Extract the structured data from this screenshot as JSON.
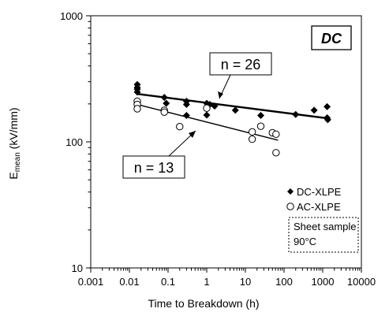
{
  "chart_data": {
    "type": "scatter",
    "title": "",
    "corner_label": "DC",
    "xlabel": "Time to Breakdown (h)",
    "ylabel_main": "E",
    "ylabel_sub": "mean",
    "ylabel_unit": " (kV/mm)",
    "x_scale": "log",
    "y_scale": "log",
    "xlim": [
      0.001,
      10000
    ],
    "ylim": [
      10,
      1000
    ],
    "x_ticks": [
      "0.001",
      "0.01",
      "0.1",
      "1",
      "10",
      "100",
      "1000",
      "10000"
    ],
    "y_ticks": [
      "10",
      "100",
      "1000"
    ],
    "grid": false,
    "legend_position": "lower-right",
    "series": [
      {
        "name": "DC-XLPE",
        "marker": "filled-diamond",
        "color": "#000000",
        "points": [
          [
            0.016,
            285
          ],
          [
            0.016,
            270
          ],
          [
            0.016,
            262
          ],
          [
            0.016,
            248
          ],
          [
            0.08,
            225
          ],
          [
            0.09,
            202
          ],
          [
            0.3,
            210
          ],
          [
            0.3,
            198
          ],
          [
            0.3,
            162
          ],
          [
            1.0,
            202
          ],
          [
            1.0,
            163
          ],
          [
            1.2,
            198
          ],
          [
            1.6,
            192
          ],
          [
            5.5,
            178
          ],
          [
            25,
            162
          ],
          [
            200,
            165
          ],
          [
            600,
            178
          ],
          [
            1300,
            190
          ],
          [
            1300,
            155
          ],
          [
            1350,
            150
          ]
        ],
        "fit_line": {
          "from": [
            0.016,
            240
          ],
          "to": [
            1500,
            153
          ]
        },
        "annotation": "n = 26"
      },
      {
        "name": "AC-XLPE",
        "marker": "open-circle",
        "color": "#000000",
        "points": [
          [
            0.016,
            210
          ],
          [
            0.016,
            198
          ],
          [
            0.016,
            183
          ],
          [
            0.08,
            178
          ],
          [
            0.08,
            172
          ],
          [
            0.2,
            132
          ],
          [
            1.0,
            185
          ],
          [
            15,
            120
          ],
          [
            15,
            105
          ],
          [
            25,
            133
          ],
          [
            50,
            118
          ],
          [
            62,
            115
          ],
          [
            62,
            82
          ]
        ],
        "fit_line": {
          "from": [
            0.016,
            198
          ],
          "to": [
            70,
            103
          ]
        },
        "annotation": "n = 13"
      }
    ],
    "note_lines": [
      "Sheet sample",
      "90°C"
    ]
  }
}
